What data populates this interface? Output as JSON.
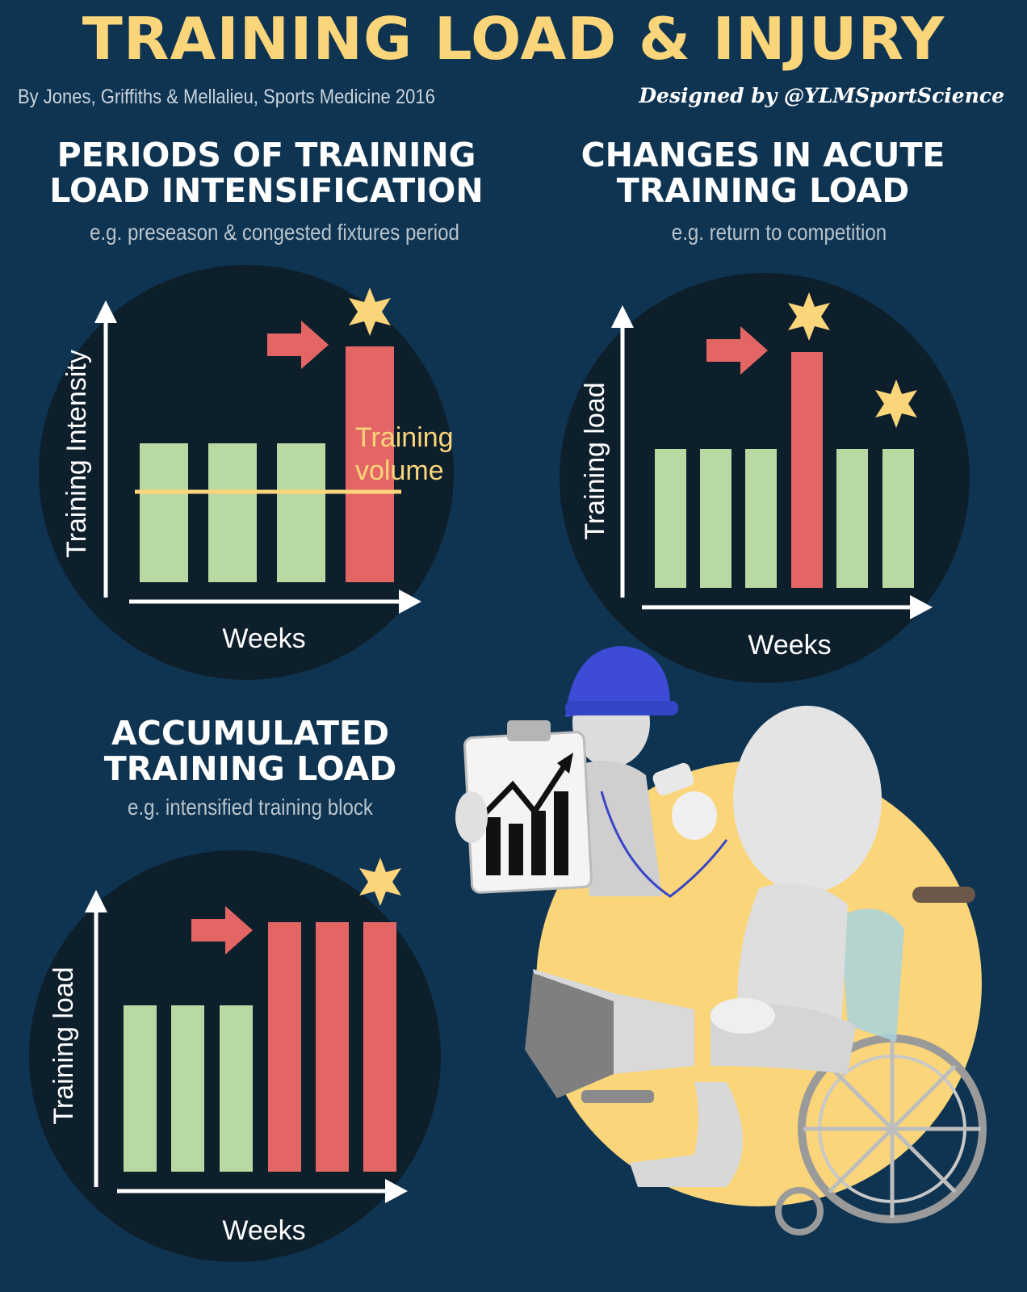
{
  "title": "TRAINING LOAD & INJURY",
  "byline": "By Jones, Griffiths & Mellalieu, Sports Medicine 2016",
  "designer": "Designed by @YLMSportScience",
  "colors": {
    "background": "#0f3452",
    "circle": "#0e1f2c",
    "green_bar": "#b9d9a2",
    "red_bar": "#e36665",
    "yellow": "#fbd57a"
  },
  "panels": {
    "intensification": {
      "title_line1": "PERIODS OF TRAINING",
      "title_line2": "LOAD INTENSIFICATION",
      "subtitle": "e.g. preseason & congested fixtures period",
      "ylabel": "Training Intensity",
      "xlabel": "Weeks",
      "volume_label_line1": "Training",
      "volume_label_line2": "volume"
    },
    "acute": {
      "title_line1": "CHANGES IN ACUTE",
      "title_line2": "TRAINING LOAD",
      "subtitle": "e.g. return to competition",
      "ylabel": "Training load",
      "xlabel": "Weeks"
    },
    "accumulated": {
      "title_line1": "ACCUMULATED",
      "title_line2": "TRAINING LOAD",
      "subtitle": "e.g. intensified training block",
      "ylabel": "Training load",
      "xlabel": "Weeks"
    }
  },
  "illustration": {
    "description_icons": [
      "coach-figure-icon",
      "clipboard-chart-icon",
      "whistle-icon",
      "injured-figure-icon",
      "wheelchair-icon"
    ]
  }
}
